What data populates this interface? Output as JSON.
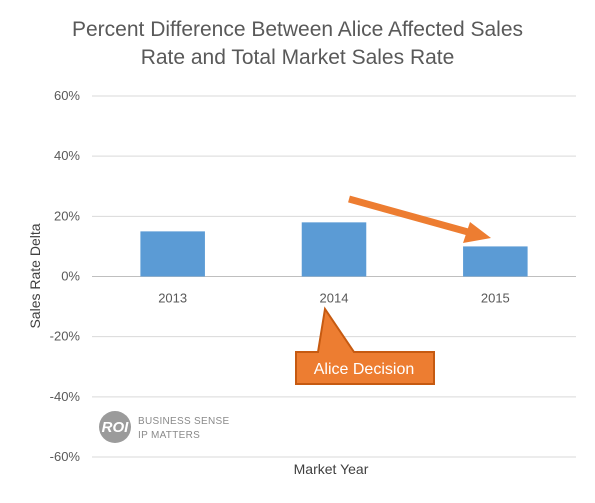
{
  "chart_data": {
    "type": "bar",
    "title_lines": [
      "Percent Difference Between Alice Affected Sales",
      "Rate and Total Market Sales Rate"
    ],
    "categories": [
      "2013",
      "2014",
      "2015"
    ],
    "values": [
      15,
      18,
      10
    ],
    "xlabel": "Market Year",
    "ylabel": "Sales Rate Delta",
    "ylim": [
      -60,
      60
    ],
    "yticks": [
      -60,
      -40,
      -20,
      0,
      20,
      40,
      60
    ],
    "yticklabels": [
      "-60%",
      "-40%",
      "-20%",
      "0%",
      "20%",
      "40%",
      "60%"
    ],
    "grid": true,
    "bar_color": "#5B9BD5",
    "annotation": {
      "text": "Alice Decision",
      "color": "#ED7D31",
      "points_to": "2014"
    },
    "trend_arrow": {
      "from": "2014",
      "to": "2015",
      "color": "#ED7D31"
    }
  },
  "logo": {
    "mark": "ROI",
    "lines": [
      "BUSINESS SENSE",
      "IP MATTERS"
    ]
  }
}
